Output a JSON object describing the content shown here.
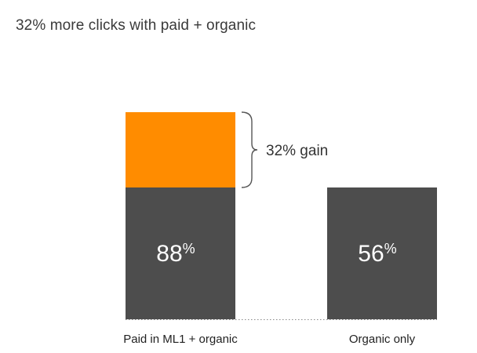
{
  "chart_data": {
    "type": "bar",
    "title": "32% more clicks with paid + organic",
    "xlabel": "",
    "ylabel": "",
    "ylim": [
      0,
      100
    ],
    "grid": false,
    "legend": "none",
    "categories": [
      "Paid in ML1 + organic",
      "Organic only"
    ],
    "series": [
      {
        "values": [
          56,
          56
        ],
        "color": "#4d4d4d"
      },
      {
        "values": [
          32,
          0
        ],
        "color": "#ff8c00"
      }
    ],
    "data_labels": [
      {
        "value": "88",
        "unit": "%"
      },
      {
        "value": "56",
        "unit": "%"
      }
    ],
    "annotation": {
      "text": "32% gain",
      "brace": "right"
    }
  }
}
